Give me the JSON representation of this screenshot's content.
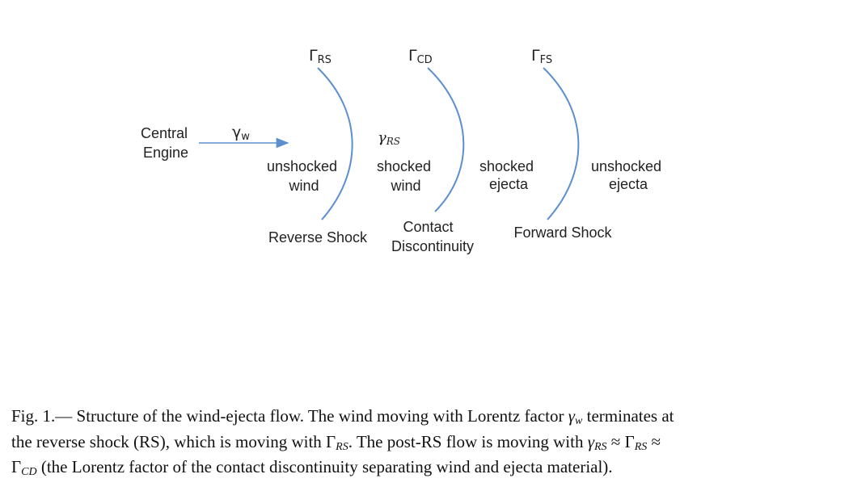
{
  "diagram": {
    "central_engine": [
      "Central",
      "Engine"
    ],
    "gamma_w": {
      "base": "γ",
      "sub": "w"
    },
    "shocks": {
      "rs": {
        "base": "Γ",
        "sub": "RS"
      },
      "cd": {
        "base": "Γ",
        "sub": "CD"
      },
      "fs": {
        "base": "Γ",
        "sub": "FS"
      }
    },
    "gamma_rs": {
      "base": "γ",
      "sub": "RS"
    },
    "regions": {
      "unshocked_wind": [
        "unshocked",
        "wind"
      ],
      "shocked_wind": [
        "shocked",
        "wind"
      ],
      "shocked_ejecta": [
        "shocked",
        "ejecta"
      ],
      "unshocked_ejecta": [
        "unshocked",
        "ejecta"
      ]
    },
    "labels": {
      "reverse_shock": "Reverse Shock",
      "contact_discontinuity": [
        "Contact",
        "Discontinuity"
      ],
      "forward_shock": "Forward Shock"
    },
    "colors": {
      "curve": "#5b8fd0",
      "arrow": "#5b8fd0",
      "text": "#222222"
    }
  },
  "caption": {
    "fig_label": "Fig. 1.",
    "dash": "—",
    "t1": " Structure of the wind-ejecta flow. The wind moving with Lorentz factor ",
    "gamma": "γ",
    "w": "w",
    "t2": " terminates at",
    "t3": "the reverse shock (RS), which is moving with ",
    "Gamma": "Γ",
    "RS": "RS",
    "t4": ". The post-RS flow is moving with ",
    "approx": " ≈ ",
    "CD": "CD",
    "t5": " (the Lorentz factor of the contact discontinuity separating wind and ejecta material)."
  }
}
